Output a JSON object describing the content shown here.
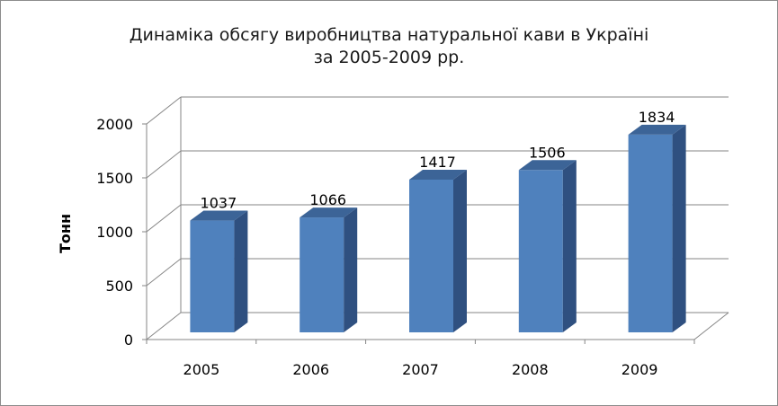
{
  "chart_data": {
    "type": "bar",
    "title_line1": "Динаміка обсягу виробництва натуральної кави в Україні",
    "title_line2": "за 2005-2009 рр.",
    "xlabel": "",
    "ylabel": "Тонн",
    "categories": [
      "2005",
      "2006",
      "2007",
      "2008",
      "2009"
    ],
    "values": [
      1037,
      1066,
      1417,
      1506,
      1834
    ],
    "ylim": [
      0,
      2000
    ],
    "yticks": [
      "0",
      "500",
      "1000",
      "1500",
      "2000"
    ],
    "grid": true,
    "legend": "none",
    "style": "3d-column",
    "bar_color": "#4f81bd"
  }
}
